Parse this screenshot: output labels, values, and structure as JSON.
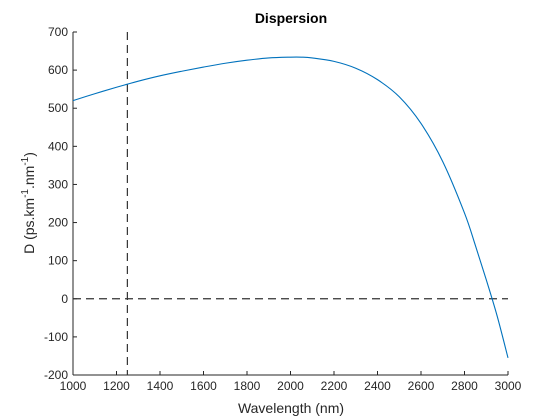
{
  "chart_data": {
    "type": "line",
    "title": "Dispersion",
    "xlabel": "Wavelength (nm)",
    "ylabel": {
      "base": "D (ps.km",
      "exp1": "-1",
      "mid": ".nm",
      "exp2": "-1",
      "end": ")"
    },
    "xlim": [
      1000,
      3000
    ],
    "ylim": [
      -200,
      700
    ],
    "xticks": [
      "1000",
      "1200",
      "1400",
      "1600",
      "1800",
      "2000",
      "2200",
      "2400",
      "2600",
      "2800",
      "3000"
    ],
    "yticks": [
      "-200",
      "-100",
      "0",
      "100",
      "200",
      "300",
      "400",
      "500",
      "600",
      "700"
    ],
    "grid": false,
    "colors": {
      "series": "#0072BD",
      "reference": "#333333"
    },
    "series": [
      {
        "x": [
          1000,
          1100,
          1200,
          1250,
          1300,
          1400,
          1500,
          1600,
          1700,
          1800,
          1900,
          2000,
          2050,
          2100,
          2200,
          2300,
          2400,
          2500,
          2600,
          2700,
          2800,
          2850,
          2900,
          2950,
          3000
        ],
        "y": [
          520,
          538,
          555,
          563,
          571,
          585,
          597,
          608,
          618,
          626,
          632,
          634,
          634,
          632,
          623,
          605,
          575,
          530,
          460,
          360,
          225,
          140,
          50,
          -45,
          -155
        ]
      }
    ],
    "reference_lines": [
      {
        "orientation": "vertical",
        "value": 1250
      },
      {
        "orientation": "horizontal",
        "value": 0
      }
    ]
  }
}
